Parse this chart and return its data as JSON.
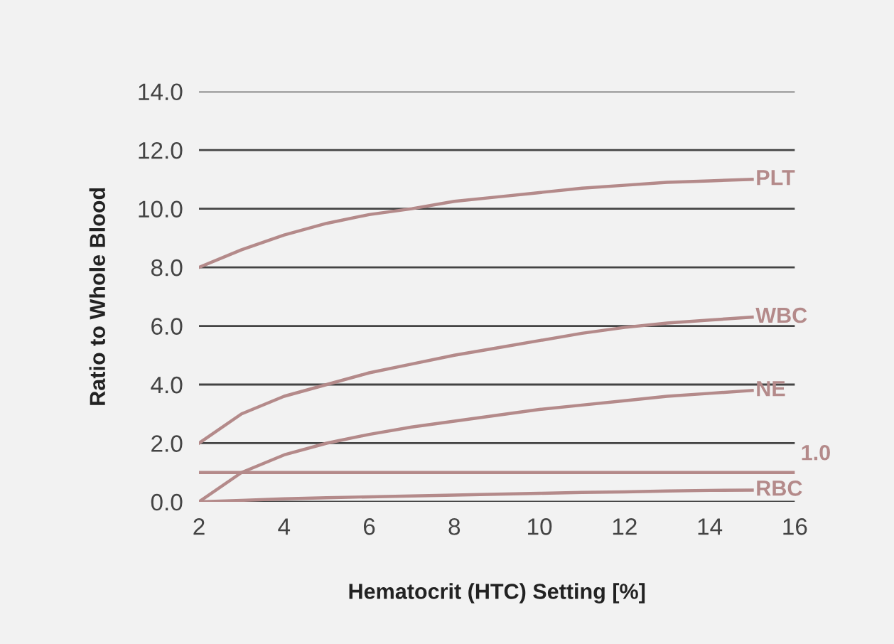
{
  "chart_data": {
    "type": "line",
    "xlabel": "Hematocrit (HTC) Setting [%]",
    "ylabel": "Ratio to Whole Blood",
    "x": [
      2,
      3,
      4,
      5,
      6,
      7,
      8,
      9,
      10,
      11,
      12,
      13,
      14,
      15
    ],
    "series": [
      {
        "name": "PLT",
        "color": "#b48a8a",
        "values": [
          8.0,
          8.6,
          9.1,
          9.5,
          9.8,
          10.0,
          10.25,
          10.4,
          10.55,
          10.7,
          10.8,
          10.9,
          10.95,
          11.0
        ]
      },
      {
        "name": "WBC",
        "color": "#b48a8a",
        "values": [
          2.0,
          3.0,
          3.6,
          4.0,
          4.4,
          4.7,
          5.0,
          5.25,
          5.5,
          5.75,
          5.95,
          6.1,
          6.2,
          6.3
        ]
      },
      {
        "name": "NE",
        "color": "#b48a8a",
        "values": [
          0.0,
          1.0,
          1.6,
          2.0,
          2.3,
          2.55,
          2.75,
          2.95,
          3.15,
          3.3,
          3.45,
          3.6,
          3.7,
          3.8
        ]
      },
      {
        "name": "RBC",
        "color": "#b48a8a",
        "values": [
          0.0,
          0.05,
          0.1,
          0.14,
          0.17,
          0.2,
          0.23,
          0.26,
          0.29,
          0.32,
          0.34,
          0.37,
          0.39,
          0.4
        ]
      }
    ],
    "ref_lines": [
      {
        "axis": "y",
        "value": 1.0,
        "label": "1.0",
        "color": "#b48a8a"
      }
    ],
    "xlim": [
      2,
      16
    ],
    "ylim": [
      0,
      14
    ],
    "xticks": [
      2,
      4,
      6,
      8,
      10,
      12,
      14,
      16
    ],
    "yticks": [
      {
        "value": 0,
        "label": "0.0"
      },
      {
        "value": 2,
        "label": "2.0"
      },
      {
        "value": 4,
        "label": "4.0"
      },
      {
        "value": 6,
        "label": "6.0"
      },
      {
        "value": 8,
        "label": "8.0"
      },
      {
        "value": 10,
        "label": "10.0"
      },
      {
        "value": 12,
        "label": "12.0"
      },
      {
        "value": 14,
        "label": "14.0"
      }
    ],
    "grid": "y",
    "legend": false,
    "marker": "none",
    "line_style": "solid"
  }
}
